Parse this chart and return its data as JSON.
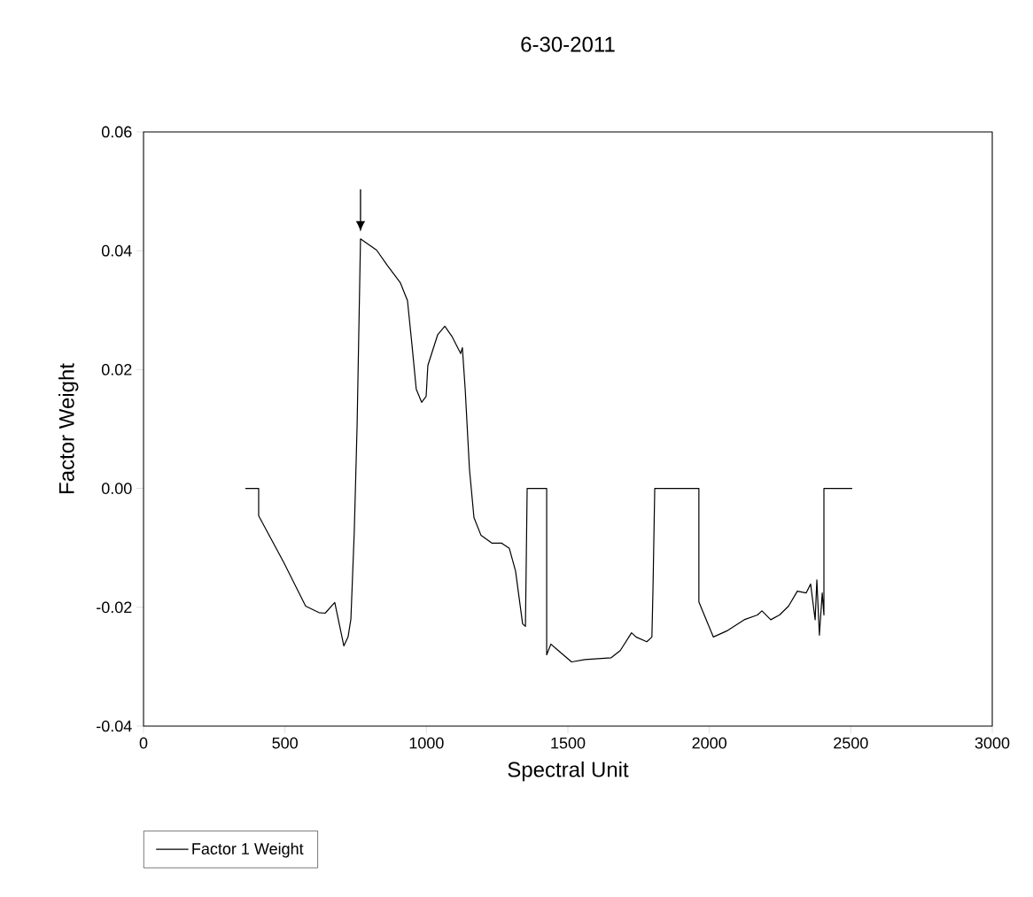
{
  "chart_data": {
    "type": "line",
    "title": "6-30-2011",
    "xlabel": "Spectral Unit",
    "ylabel": "Factor Weight",
    "xlim": [
      0,
      3000
    ],
    "xticks": [
      0,
      500,
      1000,
      1500,
      2000,
      2500,
      3000
    ],
    "ylim": [
      -0.04,
      0.06
    ],
    "yticks": [
      {
        "value": -0.04,
        "label": "-0.04"
      },
      {
        "value": -0.02,
        "label": "-0.02"
      },
      {
        "value": 0,
        "label": "0.00"
      },
      {
        "value": 0.02,
        "label": "0.02"
      },
      {
        "value": 0.04,
        "label": "0.04"
      },
      {
        "value": 0.06,
        "label": "0.06"
      }
    ],
    "grid": false,
    "legend": "bottom left",
    "marker": "none",
    "line_style": "solid",
    "series": [
      {
        "name": "Factor 1 Weight",
        "color": "#000000",
        "x": [
          360,
          407,
          407,
          495,
          573,
          620,
          642,
          676,
          708,
          723,
          733,
          745,
          755,
          767,
          824,
          861,
          908,
          933,
          949,
          964,
          983,
          999,
          1005,
          1040,
          1065,
          1090,
          1121,
          1127,
          1137,
          1152,
          1168,
          1193,
          1231,
          1265,
          1293,
          1315,
          1340,
          1350,
          1356,
          1425,
          1425,
          1440,
          1459,
          1513,
          1560,
          1653,
          1685,
          1725,
          1741,
          1779,
          1797,
          1801,
          1807,
          1963,
          1963,
          1982,
          2014,
          2061,
          2123,
          2170,
          2186,
          2217,
          2248,
          2280,
          2311,
          2342,
          2358,
          2374,
          2380,
          2389,
          2399,
          2405,
          2405,
          2505
        ],
        "values": [
          0,
          0,
          -0.0046,
          -0.0124,
          -0.0198,
          -0.0209,
          -0.021,
          -0.0192,
          -0.0265,
          -0.025,
          -0.022,
          -0.0072,
          0.0107,
          0.042,
          0.0401,
          0.0376,
          0.0346,
          0.0316,
          0.0241,
          0.0167,
          0.0145,
          0.0155,
          0.0207,
          0.0259,
          0.0273,
          0.0256,
          0.0227,
          0.0237,
          0.0167,
          0.0033,
          -0.0049,
          -0.0079,
          -0.0092,
          -0.0092,
          -0.0101,
          -0.0139,
          -0.0228,
          -0.0232,
          0,
          0,
          -0.028,
          -0.0262,
          -0.027,
          -0.0292,
          -0.0288,
          -0.0285,
          -0.0273,
          -0.0243,
          -0.025,
          -0.0258,
          -0.025,
          -0.0164,
          0,
          0,
          -0.0191,
          -0.0213,
          -0.025,
          -0.024,
          -0.0221,
          -0.0213,
          -0.0206,
          -0.0221,
          -0.0213,
          -0.0198,
          -0.0173,
          -0.0176,
          -0.0161,
          -0.0221,
          -0.0154,
          -0.0247,
          -0.0176,
          -0.0213,
          0,
          0
        ]
      }
    ]
  }
}
